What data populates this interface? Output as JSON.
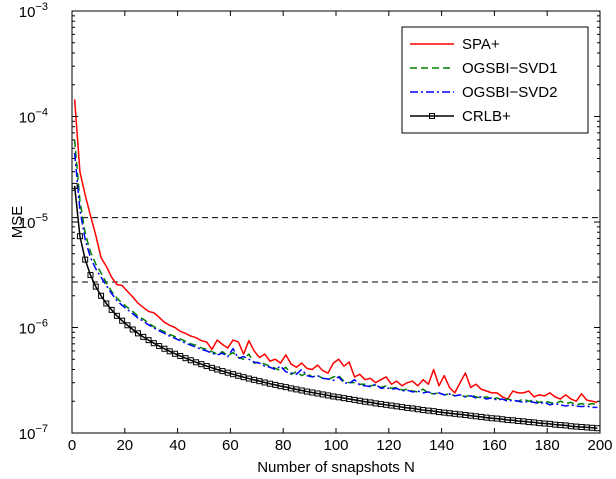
{
  "chart_data": {
    "type": "line",
    "title": "",
    "xlabel": "Number of snapshots N",
    "ylabel": "MSE",
    "xlim": [
      0,
      200
    ],
    "ylim": [
      1e-07,
      0.001
    ],
    "yscale": "log",
    "grid": false,
    "legend_position": "top-right",
    "x_ticks": [
      0,
      20,
      40,
      60,
      80,
      100,
      120,
      140,
      160,
      180,
      200
    ],
    "y_ticks": [
      {
        "value": 1e-07,
        "base": "10",
        "exp": "−7"
      },
      {
        "value": 1e-06,
        "base": "10",
        "exp": "−6"
      },
      {
        "value": 1e-05,
        "base": "10",
        "exp": "−5"
      },
      {
        "value": 0.0001,
        "base": "10",
        "exp": "−4"
      },
      {
        "value": 0.001,
        "base": "10",
        "exp": "−3"
      }
    ],
    "reference_lines": [
      1.1e-05,
      2.7e-06
    ],
    "series": [
      {
        "name": "SPA+",
        "color": "#ff0000",
        "style": "solid",
        "marker": "none",
        "x": [
          1,
          3,
          5,
          7,
          9,
          11,
          13,
          15,
          17,
          19,
          21,
          23,
          25,
          27,
          29,
          31,
          33,
          35,
          37,
          39,
          41,
          43,
          45,
          47,
          49,
          51,
          53,
          55,
          57,
          59,
          61,
          63,
          65,
          67,
          69,
          71,
          73,
          75,
          77,
          79,
          81,
          83,
          85,
          87,
          89,
          91,
          93,
          95,
          97,
          99,
          101,
          103,
          105,
          107,
          109,
          111,
          113,
          115,
          117,
          119,
          121,
          123,
          125,
          127,
          129,
          131,
          133,
          135,
          137,
          139,
          141,
          143,
          145,
          147,
          149,
          151,
          153,
          155,
          157,
          159,
          161,
          163,
          165,
          167,
          169,
          171,
          173,
          175,
          177,
          179,
          181,
          183,
          185,
          187,
          189,
          191,
          193,
          195,
          197,
          199
        ],
        "y": [
          0.000145,
          3e-05,
          1.8e-05,
          1.15e-05,
          7.5e-06,
          4.6e-06,
          3.8e-06,
          3e-06,
          2.55e-06,
          2.5e-06,
          2.2e-06,
          1.95e-06,
          1.7e-06,
          1.55e-06,
          1.42e-06,
          1.38e-06,
          1.25e-06,
          1.12e-06,
          1.05e-06,
          1e-06,
          9.2e-07,
          8.8e-07,
          8.3e-07,
          8e-07,
          7.5e-07,
          7.3e-07,
          6.2e-07,
          7.6e-07,
          6.9e-07,
          6.4e-07,
          7.6e-07,
          7.3e-07,
          5.6e-07,
          7.5e-07,
          6e-07,
          5.2e-07,
          5.6e-07,
          4.8e-07,
          5e-07,
          4.6e-07,
          5.5e-07,
          4.5e-07,
          4.2e-07,
          4.6e-07,
          4.1e-07,
          4e-07,
          4.4e-07,
          3.9e-07,
          3.7e-07,
          4.6e-07,
          5e-07,
          4.3e-07,
          4.7e-07,
          3.4e-07,
          3.6e-07,
          3.2e-07,
          3.3e-07,
          3e-07,
          3.2e-07,
          3.4e-07,
          2.9e-07,
          3.1e-07,
          2.8e-07,
          3e-07,
          3.1e-07,
          2.8e-07,
          3.2e-07,
          2.9e-07,
          4e-07,
          2.8e-07,
          3.5e-07,
          2.7e-07,
          2.4e-07,
          3e-07,
          3.7e-07,
          2.7e-07,
          2.9e-07,
          2.6e-07,
          2.5e-07,
          2.4e-07,
          2.4e-07,
          2.2e-07,
          2.1e-07,
          2.5e-07,
          2.4e-07,
          2.4e-07,
          2.5e-07,
          2.2e-07,
          2.3e-07,
          2.25e-07,
          2.4e-07,
          2.2e-07,
          2.1e-07,
          2.3e-07,
          2.1e-07,
          2e-07,
          2.35e-07,
          2.05e-07,
          2e-07,
          1.95e-07
        ]
      },
      {
        "name": "OGSBI−SVD1",
        "color": "#008000",
        "style": "dashed",
        "marker": "none",
        "x": [
          1,
          3,
          5,
          7,
          9,
          11,
          13,
          15,
          17,
          19,
          21,
          23,
          25,
          27,
          29,
          31,
          33,
          35,
          37,
          39,
          41,
          43,
          45,
          47,
          49,
          51,
          53,
          55,
          57,
          59,
          61,
          63,
          65,
          67,
          69,
          71,
          73,
          75,
          77,
          79,
          81,
          83,
          85,
          87,
          89,
          91,
          93,
          95,
          97,
          99,
          101,
          103,
          105,
          107,
          109,
          111,
          113,
          115,
          117,
          119,
          121,
          123,
          125,
          127,
          129,
          131,
          133,
          135,
          137,
          139,
          141,
          143,
          145,
          147,
          149,
          151,
          153,
          155,
          157,
          159,
          161,
          163,
          165,
          167,
          169,
          171,
          173,
          175,
          177,
          179,
          181,
          183,
          185,
          187,
          189,
          191,
          193,
          195,
          197,
          199
        ],
        "y": [
          6e-05,
          1.6e-05,
          7.8e-06,
          5.2e-06,
          4e-06,
          3.3e-06,
          2.65e-06,
          2.2e-06,
          1.9e-06,
          1.7e-06,
          1.55e-06,
          1.42e-06,
          1.28e-06,
          1.2e-06,
          1.1e-06,
          1.02e-06,
          9.6e-07,
          9.1e-07,
          8.6e-07,
          8.2e-07,
          7.8e-07,
          7.4e-07,
          7e-07,
          6.8e-07,
          6.4e-07,
          6.2e-07,
          5.9e-07,
          5.6e-07,
          5.9e-07,
          5.4e-07,
          5.8e-07,
          5.2e-07,
          5e-07,
          5.6e-07,
          4.6e-07,
          4.7e-07,
          4.5e-07,
          4.3e-07,
          4.1e-07,
          3.9e-07,
          4.2e-07,
          3.6e-07,
          3.8e-07,
          3.5e-07,
          3.7e-07,
          3.4e-07,
          3.5e-07,
          3.3e-07,
          3.2e-07,
          3.4e-07,
          3.5e-07,
          3.1e-07,
          3e-07,
          3e-07,
          2.9e-07,
          2.9e-07,
          2.8e-07,
          2.85e-07,
          2.7e-07,
          2.8e-07,
          2.65e-07,
          2.7e-07,
          2.55e-07,
          2.6e-07,
          2.5e-07,
          2.45e-07,
          2.6e-07,
          2.4e-07,
          2.35e-07,
          2.4e-07,
          2.3e-07,
          2.35e-07,
          2.25e-07,
          2.3e-07,
          2.2e-07,
          2.3e-07,
          2.2e-07,
          2.15e-07,
          2.2e-07,
          2.1e-07,
          2.15e-07,
          2.05e-07,
          2.1e-07,
          2.05e-07,
          2e-07,
          2.1e-07,
          2e-07,
          2.05e-07,
          1.95e-07,
          2e-07,
          1.95e-07,
          1.9e-07,
          2e-07,
          1.9e-07,
          1.95e-07,
          1.85e-07,
          1.9e-07,
          1.85e-07,
          1.9e-07,
          1.85e-07
        ]
      },
      {
        "name": "OGSBI−SVD2",
        "color": "#0000ff",
        "style": "dashdot",
        "marker": "none",
        "x": [
          1,
          3,
          5,
          7,
          9,
          11,
          13,
          15,
          17,
          19,
          21,
          23,
          25,
          27,
          29,
          31,
          33,
          35,
          37,
          39,
          41,
          43,
          45,
          47,
          49,
          51,
          53,
          55,
          57,
          59,
          61,
          63,
          65,
          67,
          69,
          71,
          73,
          75,
          77,
          79,
          81,
          83,
          85,
          87,
          89,
          91,
          93,
          95,
          97,
          99,
          101,
          103,
          105,
          107,
          109,
          111,
          113,
          115,
          117,
          119,
          121,
          123,
          125,
          127,
          129,
          131,
          133,
          135,
          137,
          139,
          141,
          143,
          145,
          147,
          149,
          151,
          153,
          155,
          157,
          159,
          161,
          163,
          165,
          167,
          169,
          171,
          173,
          175,
          177,
          179,
          181,
          183,
          185,
          187,
          189,
          191,
          193,
          195,
          197,
          199
        ],
        "y": [
          4.5e-05,
          1.3e-05,
          6.8e-06,
          4.6e-06,
          3.6e-06,
          3e-06,
          2.5e-06,
          2.1e-06,
          1.8e-06,
          1.62e-06,
          1.48e-06,
          1.35e-06,
          1.23e-06,
          1.15e-06,
          1.06e-06,
          9.9e-07,
          9.3e-07,
          8.8e-07,
          8.3e-07,
          7.9e-07,
          7.5e-07,
          7.1e-07,
          6.8e-07,
          6.5e-07,
          6.2e-07,
          6e-07,
          5.7e-07,
          5.5e-07,
          5.7e-07,
          5.3e-07,
          6.3e-07,
          5.1e-07,
          5.3e-07,
          5e-07,
          4.7e-07,
          4.6e-07,
          4.3e-07,
          4.2e-07,
          4e-07,
          4.3e-07,
          3.8e-07,
          3.7e-07,
          3.6e-07,
          4e-07,
          3.5e-07,
          3.4e-07,
          3.5e-07,
          3.3e-07,
          3.25e-07,
          3.15e-07,
          3.4e-07,
          3e-07,
          2.95e-07,
          3.2e-07,
          2.85e-07,
          2.8e-07,
          2.75e-07,
          2.9e-07,
          2.65e-07,
          2.7e-07,
          2.6e-07,
          2.65e-07,
          2.5e-07,
          2.55e-07,
          2.45e-07,
          2.5e-07,
          2.4e-07,
          2.45e-07,
          2.35e-07,
          2.4e-07,
          2.3e-07,
          2.35e-07,
          2.25e-07,
          2.3e-07,
          2.2e-07,
          2.25e-07,
          2.15e-07,
          2.2e-07,
          2.1e-07,
          2.15e-07,
          2.05e-07,
          2.1e-07,
          2e-07,
          2.05e-07,
          2e-07,
          1.95e-07,
          2e-07,
          1.95e-07,
          1.9e-07,
          1.95e-07,
          1.85e-07,
          1.9e-07,
          1.85e-07,
          1.8e-07,
          1.85e-07,
          1.8e-07,
          1.78e-07,
          1.8e-07,
          1.75e-07,
          1.75e-07
        ]
      },
      {
        "name": "CRLB+",
        "color": "#000000",
        "style": "solid",
        "marker": "square",
        "x": [
          1,
          3,
          5,
          7,
          9,
          11,
          13,
          15,
          17,
          19,
          21,
          23,
          25,
          27,
          29,
          31,
          33,
          35,
          37,
          39,
          41,
          43,
          45,
          47,
          49,
          51,
          53,
          55,
          57,
          59,
          61,
          63,
          65,
          67,
          69,
          71,
          73,
          75,
          77,
          79,
          81,
          83,
          85,
          87,
          89,
          91,
          93,
          95,
          97,
          99,
          101,
          103,
          105,
          107,
          109,
          111,
          113,
          115,
          117,
          119,
          121,
          123,
          125,
          127,
          129,
          131,
          133,
          135,
          137,
          139,
          141,
          143,
          145,
          147,
          149,
          151,
          153,
          155,
          157,
          159,
          161,
          163,
          165,
          167,
          169,
          171,
          173,
          175,
          177,
          179,
          181,
          183,
          185,
          187,
          189,
          191,
          193,
          195,
          197,
          199
        ],
        "y": [
          2.2e-05,
          7.33e-06,
          4.4e-06,
          3.14e-06,
          2.44e-06,
          2e-06,
          1.69e-06,
          1.47e-06,
          1.29e-06,
          1.16e-06,
          1.05e-06,
          9.57e-07,
          8.8e-07,
          8.15e-07,
          7.59e-07,
          7.1e-07,
          6.67e-07,
          6.29e-07,
          5.95e-07,
          5.64e-07,
          5.37e-07,
          5.12e-07,
          4.89e-07,
          4.68e-07,
          4.49e-07,
          4.31e-07,
          4.15e-07,
          4e-07,
          3.86e-07,
          3.73e-07,
          3.61e-07,
          3.49e-07,
          3.38e-07,
          3.28e-07,
          3.19e-07,
          3.1e-07,
          3.01e-07,
          2.93e-07,
          2.86e-07,
          2.78e-07,
          2.72e-07,
          2.65e-07,
          2.59e-07,
          2.53e-07,
          2.47e-07,
          2.42e-07,
          2.37e-07,
          2.32e-07,
          2.27e-07,
          2.22e-07,
          2.18e-07,
          2.14e-07,
          2.1e-07,
          2.06e-07,
          2.02e-07,
          1.98e-07,
          1.95e-07,
          1.91e-07,
          1.88e-07,
          1.85e-07,
          1.82e-07,
          1.79e-07,
          1.76e-07,
          1.73e-07,
          1.71e-07,
          1.68e-07,
          1.65e-07,
          1.63e-07,
          1.61e-07,
          1.58e-07,
          1.56e-07,
          1.54e-07,
          1.52e-07,
          1.5e-07,
          1.48e-07,
          1.46e-07,
          1.44e-07,
          1.42e-07,
          1.4e-07,
          1.38e-07,
          1.37e-07,
          1.35e-07,
          1.33e-07,
          1.32e-07,
          1.3e-07,
          1.29e-07,
          1.27e-07,
          1.26e-07,
          1.24e-07,
          1.23e-07,
          1.22e-07,
          1.2e-07,
          1.19e-07,
          1.18e-07,
          1.16e-07,
          1.15e-07,
          1.14e-07,
          1.13e-07,
          1.12e-07,
          1.11e-07
        ]
      }
    ]
  }
}
